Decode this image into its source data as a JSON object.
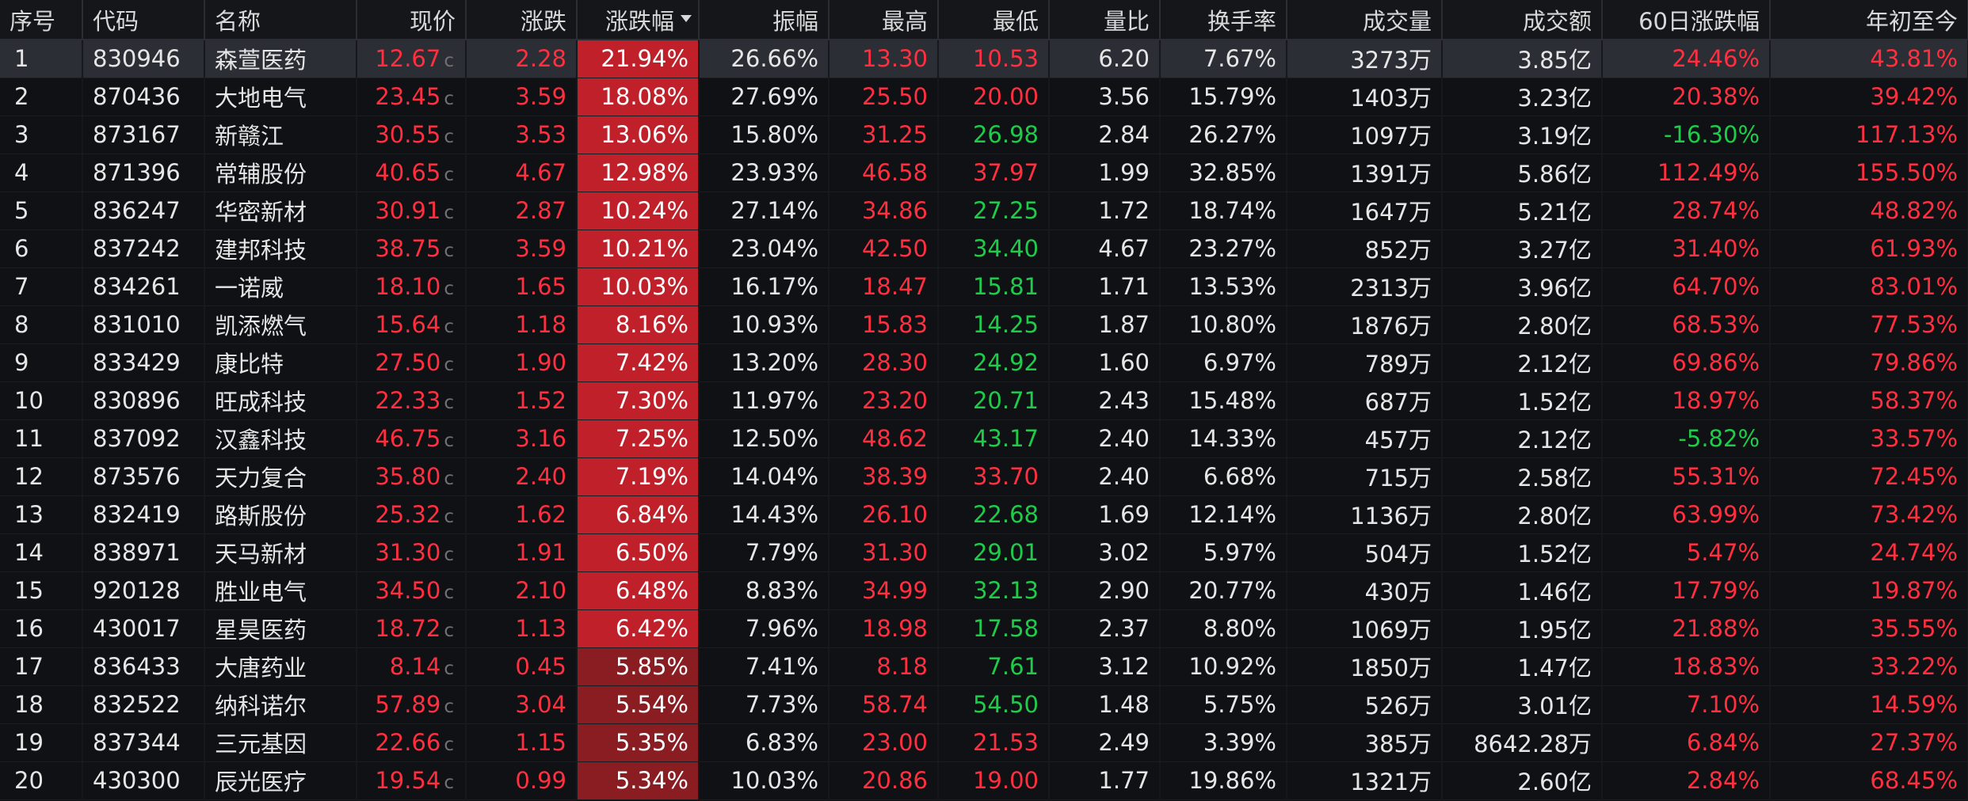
{
  "headers": [
    "序号",
    "代码",
    "名称",
    "现价",
    "涨跌",
    "涨跌幅",
    "振幅",
    "最高",
    "最低",
    "量比",
    "换手率",
    "成交量",
    "成交额",
    "60日涨跌幅",
    "年初至今"
  ],
  "sorted_column": "涨跌幅",
  "price_suffix": "c",
  "colors": {
    "up": "#ff2f3f",
    "down": "#1fcc4a",
    "neutral": "#e6e6e6",
    "pct_bg_strong": "#c0202a",
    "pct_bg_weak": "#8a1d22"
  },
  "rows": [
    {
      "no": "1",
      "code": "830946",
      "name": "森萱医药",
      "price": "12.67",
      "change": "2.28",
      "pct": "21.94%",
      "amp": "26.66%",
      "high": "13.30",
      "high_dir": "up",
      "low": "10.53",
      "low_dir": "up",
      "vol_ratio": "6.20",
      "turnover": "7.67%",
      "volume": "3273万",
      "amount": "3.85亿",
      "d60": "24.46%",
      "d60_dir": "up",
      "ytd": "43.81%",
      "ytd_dir": "up"
    },
    {
      "no": "2",
      "code": "870436",
      "name": "大地电气",
      "price": "23.45",
      "change": "3.59",
      "pct": "18.08%",
      "amp": "27.69%",
      "high": "25.50",
      "high_dir": "up",
      "low": "20.00",
      "low_dir": "up",
      "vol_ratio": "3.56",
      "turnover": "15.79%",
      "volume": "1403万",
      "amount": "3.23亿",
      "d60": "20.38%",
      "d60_dir": "up",
      "ytd": "39.42%",
      "ytd_dir": "up"
    },
    {
      "no": "3",
      "code": "873167",
      "name": "新赣江",
      "price": "30.55",
      "change": "3.53",
      "pct": "13.06%",
      "amp": "15.80%",
      "high": "31.25",
      "high_dir": "up",
      "low": "26.98",
      "low_dir": "down",
      "vol_ratio": "2.84",
      "turnover": "26.27%",
      "volume": "1097万",
      "amount": "3.19亿",
      "d60": "-16.30%",
      "d60_dir": "down",
      "ytd": "117.13%",
      "ytd_dir": "up"
    },
    {
      "no": "4",
      "code": "871396",
      "name": "常辅股份",
      "price": "40.65",
      "change": "4.67",
      "pct": "12.98%",
      "amp": "23.93%",
      "high": "46.58",
      "high_dir": "up",
      "low": "37.97",
      "low_dir": "up",
      "vol_ratio": "1.99",
      "turnover": "32.85%",
      "volume": "1391万",
      "amount": "5.86亿",
      "d60": "112.49%",
      "d60_dir": "up",
      "ytd": "155.50%",
      "ytd_dir": "up"
    },
    {
      "no": "5",
      "code": "836247",
      "name": "华密新材",
      "price": "30.91",
      "change": "2.87",
      "pct": "10.24%",
      "amp": "27.14%",
      "high": "34.86",
      "high_dir": "up",
      "low": "27.25",
      "low_dir": "down",
      "vol_ratio": "1.72",
      "turnover": "18.74%",
      "volume": "1647万",
      "amount": "5.21亿",
      "d60": "28.74%",
      "d60_dir": "up",
      "ytd": "48.82%",
      "ytd_dir": "up"
    },
    {
      "no": "6",
      "code": "837242",
      "name": "建邦科技",
      "price": "38.75",
      "change": "3.59",
      "pct": "10.21%",
      "amp": "23.04%",
      "high": "42.50",
      "high_dir": "up",
      "low": "34.40",
      "low_dir": "down",
      "vol_ratio": "4.67",
      "turnover": "23.27%",
      "volume": "852万",
      "amount": "3.27亿",
      "d60": "31.40%",
      "d60_dir": "up",
      "ytd": "61.93%",
      "ytd_dir": "up"
    },
    {
      "no": "7",
      "code": "834261",
      "name": "一诺威",
      "price": "18.10",
      "change": "1.65",
      "pct": "10.03%",
      "amp": "16.17%",
      "high": "18.47",
      "high_dir": "up",
      "low": "15.81",
      "low_dir": "down",
      "vol_ratio": "1.71",
      "turnover": "13.53%",
      "volume": "2313万",
      "amount": "3.96亿",
      "d60": "64.70%",
      "d60_dir": "up",
      "ytd": "83.01%",
      "ytd_dir": "up"
    },
    {
      "no": "8",
      "code": "831010",
      "name": "凯添燃气",
      "price": "15.64",
      "change": "1.18",
      "pct": "8.16%",
      "amp": "10.93%",
      "high": "15.83",
      "high_dir": "up",
      "low": "14.25",
      "low_dir": "down",
      "vol_ratio": "1.87",
      "turnover": "10.80%",
      "volume": "1876万",
      "amount": "2.80亿",
      "d60": "68.53%",
      "d60_dir": "up",
      "ytd": "77.53%",
      "ytd_dir": "up"
    },
    {
      "no": "9",
      "code": "833429",
      "name": "康比特",
      "price": "27.50",
      "change": "1.90",
      "pct": "7.42%",
      "amp": "13.20%",
      "high": "28.30",
      "high_dir": "up",
      "low": "24.92",
      "low_dir": "down",
      "vol_ratio": "1.60",
      "turnover": "6.97%",
      "volume": "789万",
      "amount": "2.12亿",
      "d60": "69.86%",
      "d60_dir": "up",
      "ytd": "79.86%",
      "ytd_dir": "up"
    },
    {
      "no": "10",
      "code": "830896",
      "name": "旺成科技",
      "price": "22.33",
      "change": "1.52",
      "pct": "7.30%",
      "amp": "11.97%",
      "high": "23.20",
      "high_dir": "up",
      "low": "20.71",
      "low_dir": "down",
      "vol_ratio": "2.43",
      "turnover": "15.48%",
      "volume": "687万",
      "amount": "1.52亿",
      "d60": "18.97%",
      "d60_dir": "up",
      "ytd": "58.37%",
      "ytd_dir": "up"
    },
    {
      "no": "11",
      "code": "837092",
      "name": "汉鑫科技",
      "price": "46.75",
      "change": "3.16",
      "pct": "7.25%",
      "amp": "12.50%",
      "high": "48.62",
      "high_dir": "up",
      "low": "43.17",
      "low_dir": "down",
      "vol_ratio": "2.40",
      "turnover": "14.33%",
      "volume": "457万",
      "amount": "2.12亿",
      "d60": "-5.82%",
      "d60_dir": "down",
      "ytd": "33.57%",
      "ytd_dir": "up"
    },
    {
      "no": "12",
      "code": "873576",
      "name": "天力复合",
      "price": "35.80",
      "change": "2.40",
      "pct": "7.19%",
      "amp": "14.04%",
      "high": "38.39",
      "high_dir": "up",
      "low": "33.70",
      "low_dir": "up",
      "vol_ratio": "2.40",
      "turnover": "6.68%",
      "volume": "715万",
      "amount": "2.58亿",
      "d60": "55.31%",
      "d60_dir": "up",
      "ytd": "72.45%",
      "ytd_dir": "up"
    },
    {
      "no": "13",
      "code": "832419",
      "name": "路斯股份",
      "price": "25.32",
      "change": "1.62",
      "pct": "6.84%",
      "amp": "14.43%",
      "high": "26.10",
      "high_dir": "up",
      "low": "22.68",
      "low_dir": "down",
      "vol_ratio": "1.69",
      "turnover": "12.14%",
      "volume": "1136万",
      "amount": "2.80亿",
      "d60": "63.99%",
      "d60_dir": "up",
      "ytd": "73.42%",
      "ytd_dir": "up"
    },
    {
      "no": "14",
      "code": "838971",
      "name": "天马新材",
      "price": "31.30",
      "change": "1.91",
      "pct": "6.50%",
      "amp": "7.79%",
      "high": "31.30",
      "high_dir": "up",
      "low": "29.01",
      "low_dir": "down",
      "vol_ratio": "3.02",
      "turnover": "5.97%",
      "volume": "504万",
      "amount": "1.52亿",
      "d60": "5.47%",
      "d60_dir": "up",
      "ytd": "24.74%",
      "ytd_dir": "up"
    },
    {
      "no": "15",
      "code": "920128",
      "name": "胜业电气",
      "price": "34.50",
      "change": "2.10",
      "pct": "6.48%",
      "amp": "8.83%",
      "high": "34.99",
      "high_dir": "up",
      "low": "32.13",
      "low_dir": "down",
      "vol_ratio": "2.90",
      "turnover": "20.77%",
      "volume": "430万",
      "amount": "1.46亿",
      "d60": "17.79%",
      "d60_dir": "up",
      "ytd": "19.87%",
      "ytd_dir": "up"
    },
    {
      "no": "16",
      "code": "430017",
      "name": "星昊医药",
      "price": "18.72",
      "change": "1.13",
      "pct": "6.42%",
      "amp": "7.96%",
      "high": "18.98",
      "high_dir": "up",
      "low": "17.58",
      "low_dir": "down",
      "vol_ratio": "2.37",
      "turnover": "8.80%",
      "volume": "1069万",
      "amount": "1.95亿",
      "d60": "21.88%",
      "d60_dir": "up",
      "ytd": "35.55%",
      "ytd_dir": "up"
    },
    {
      "no": "17",
      "code": "836433",
      "name": "大唐药业",
      "price": "8.14",
      "change": "0.45",
      "pct": "5.85%",
      "amp": "7.41%",
      "high": "8.18",
      "high_dir": "up",
      "low": "7.61",
      "low_dir": "down",
      "vol_ratio": "3.12",
      "turnover": "10.92%",
      "volume": "1850万",
      "amount": "1.47亿",
      "d60": "18.83%",
      "d60_dir": "up",
      "ytd": "33.22%",
      "ytd_dir": "up"
    },
    {
      "no": "18",
      "code": "832522",
      "name": "纳科诺尔",
      "price": "57.89",
      "change": "3.04",
      "pct": "5.54%",
      "amp": "7.73%",
      "high": "58.74",
      "high_dir": "up",
      "low": "54.50",
      "low_dir": "down",
      "vol_ratio": "1.48",
      "turnover": "5.75%",
      "volume": "526万",
      "amount": "3.01亿",
      "d60": "7.10%",
      "d60_dir": "up",
      "ytd": "14.59%",
      "ytd_dir": "up"
    },
    {
      "no": "19",
      "code": "837344",
      "name": "三元基因",
      "price": "22.66",
      "change": "1.15",
      "pct": "5.35%",
      "amp": "6.83%",
      "high": "23.00",
      "high_dir": "up",
      "low": "21.53",
      "low_dir": "up",
      "vol_ratio": "2.49",
      "turnover": "3.39%",
      "volume": "385万",
      "amount": "8642.28万",
      "d60": "6.84%",
      "d60_dir": "up",
      "ytd": "27.37%",
      "ytd_dir": "up"
    },
    {
      "no": "20",
      "code": "430300",
      "name": "辰光医疗",
      "price": "19.54",
      "change": "0.99",
      "pct": "5.34%",
      "amp": "10.03%",
      "high": "20.86",
      "high_dir": "up",
      "low": "19.00",
      "low_dir": "up",
      "vol_ratio": "1.77",
      "turnover": "19.86%",
      "volume": "1321万",
      "amount": "2.60亿",
      "d60": "2.84%",
      "d60_dir": "up",
      "ytd": "68.45%",
      "ytd_dir": "up"
    }
  ]
}
